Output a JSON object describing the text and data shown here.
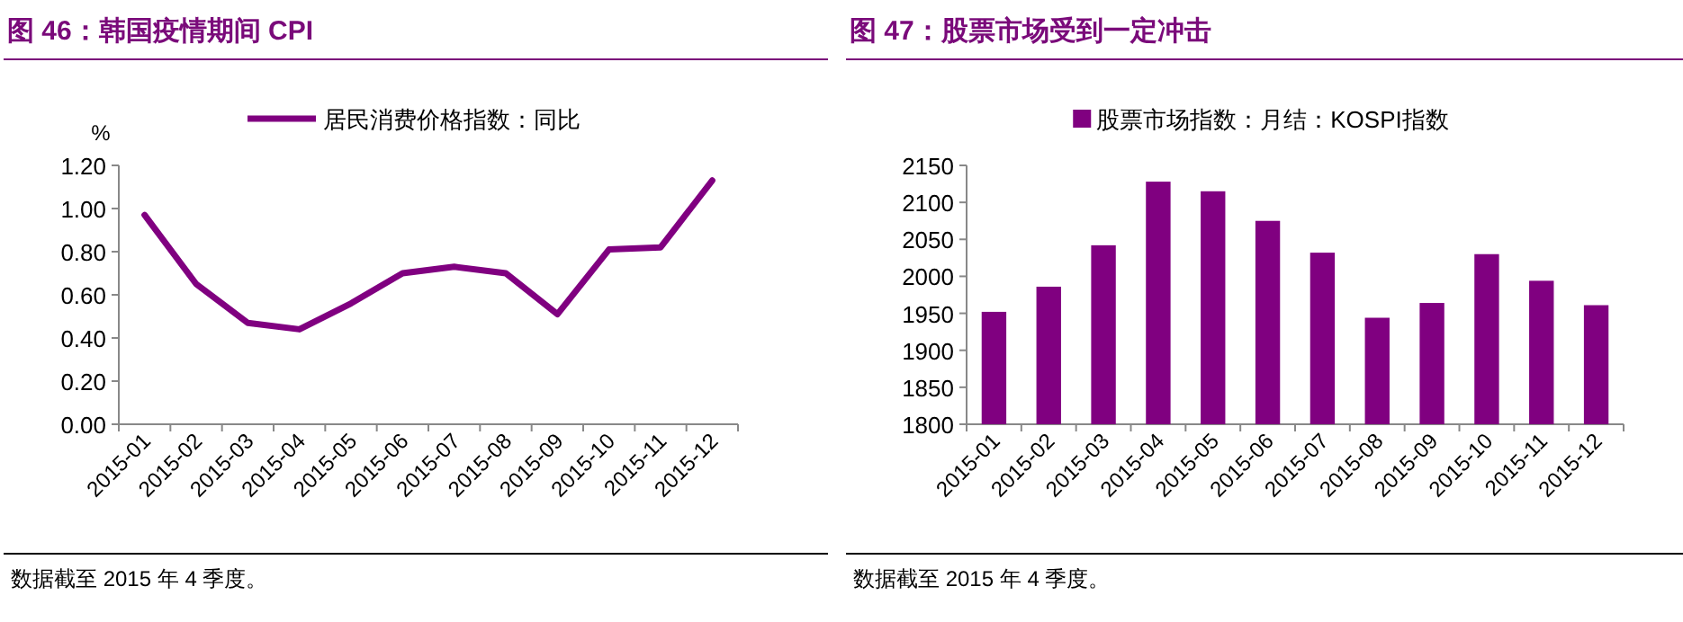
{
  "chart_data": [
    {
      "type": "line",
      "title": "图 46：韩国疫情期间 CPI",
      "ylabel": "%",
      "categories": [
        "2015-01",
        "2015-02",
        "2015-03",
        "2015-04",
        "2015-05",
        "2015-06",
        "2015-07",
        "2015-08",
        "2015-09",
        "2015-10",
        "2015-11",
        "2015-12"
      ],
      "series": [
        {
          "name": "居民消费价格指数：同比",
          "color": "#800080",
          "values": [
            0.97,
            0.65,
            0.47,
            0.44,
            0.56,
            0.7,
            0.73,
            0.7,
            0.51,
            0.81,
            0.82,
            1.13
          ]
        }
      ],
      "ylim": [
        0,
        1.2
      ],
      "yticks": [
        {
          "value": 0,
          "label": "0.00"
        },
        {
          "value": 0.2,
          "label": "0.20"
        },
        {
          "value": 0.4,
          "label": "0.40"
        },
        {
          "value": 0.6,
          "label": "0.60"
        },
        {
          "value": 0.8,
          "label": "0.80"
        },
        {
          "value": 1,
          "label": "1.00"
        },
        {
          "value": 1.2,
          "label": "1.20"
        }
      ],
      "legend": "top",
      "grid": false,
      "marker": "none",
      "annotations": [
        "数据截至 2015 年 4 季度。"
      ]
    },
    {
      "type": "bar",
      "title": "图 47：股票市场受到一定冲击",
      "categories": [
        "2015-01",
        "2015-02",
        "2015-03",
        "2015-04",
        "2015-05",
        "2015-06",
        "2015-07",
        "2015-08",
        "2015-09",
        "2015-10",
        "2015-11",
        "2015-12"
      ],
      "series": [
        {
          "name": "股票市场指数：月结：KOSPI指数",
          "color": "#800080",
          "values": [
            1952,
            1986,
            2042,
            2128,
            2115,
            2075,
            2032,
            1944,
            1964,
            2030,
            1994,
            1961
          ]
        }
      ],
      "ylim": [
        1800,
        2150
      ],
      "yticks": [
        1800,
        1850,
        1900,
        1950,
        2000,
        2050,
        2100,
        2150
      ],
      "legend": "top",
      "grid": false,
      "annotations": [
        "数据截至 2015 年 4 季度。"
      ]
    }
  ]
}
